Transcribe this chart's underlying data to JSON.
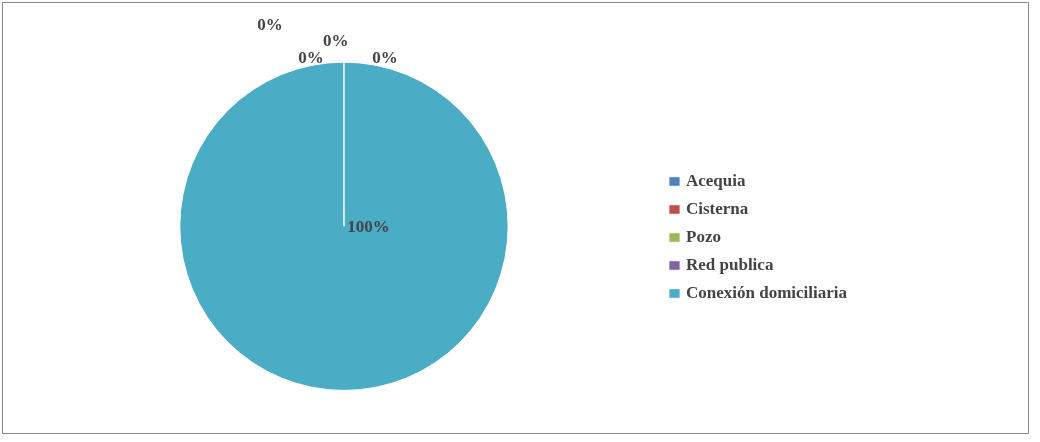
{
  "chart_data": {
    "type": "pie",
    "categories": [
      "Acequia",
      "Cisterna",
      "Pozo",
      "Red publica",
      "Conexión domiciliaria"
    ],
    "values": [
      0,
      0,
      0,
      0,
      100
    ],
    "value_labels": [
      "0%",
      "0%",
      "0%",
      "0%",
      "100%"
    ],
    "colors": [
      "#4f81bd",
      "#c0504d",
      "#9bbb59",
      "#8064a2",
      "#4bacc6"
    ],
    "legend": "right"
  }
}
